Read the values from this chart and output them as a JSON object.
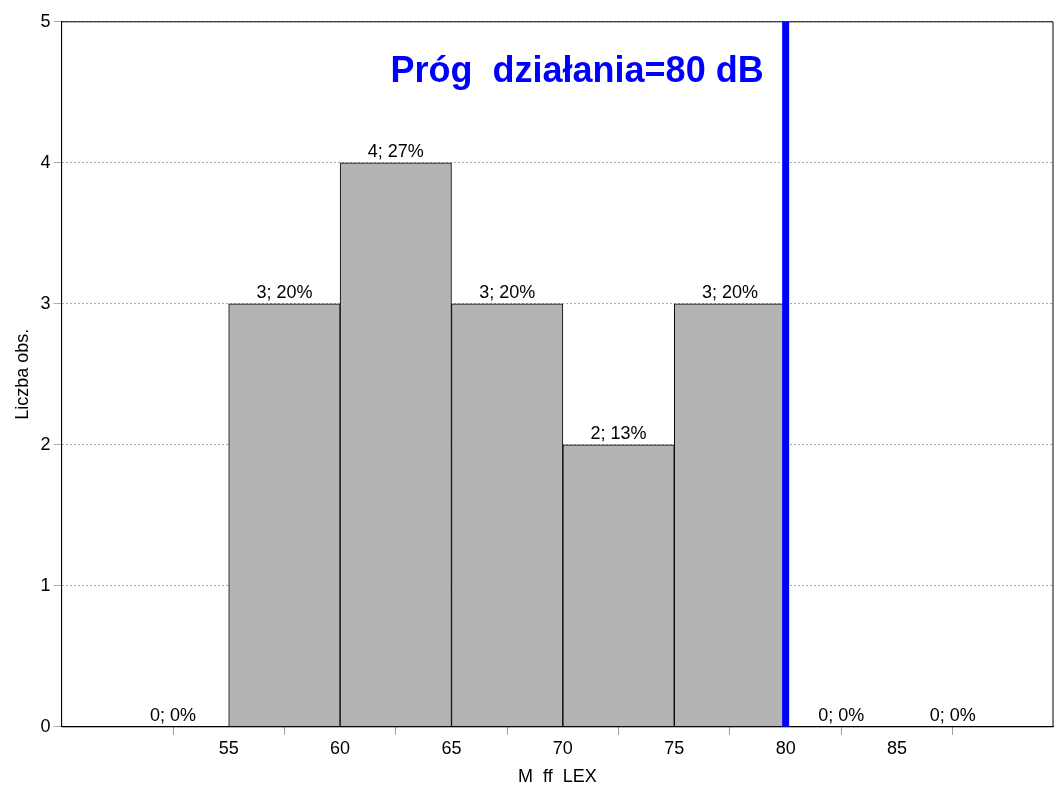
{
  "chart_data": {
    "type": "histogram",
    "xlabel": "M  ff  LEX",
    "ylabel": "Liczba obs.",
    "bins": [
      50,
      55,
      60,
      65,
      70,
      75,
      80,
      85,
      90
    ],
    "values": [
      0,
      3,
      4,
      3,
      2,
      3,
      0,
      0
    ],
    "value_labels": [
      "0; 0%",
      "3; 20%",
      "4; 27%",
      "3; 20%",
      "2; 13%",
      "3; 20%",
      "0; 0%",
      "0; 0%"
    ],
    "color": "#b4b4b4",
    "xlim": [
      47.5,
      92
    ],
    "xticks": [
      55,
      60,
      65,
      70,
      75,
      80,
      85
    ],
    "ylim": [
      0,
      5
    ],
    "yticks": [
      0,
      1,
      2,
      3,
      4,
      5
    ],
    "grid": "y",
    "legend": false,
    "ref_lines": [
      {
        "axis": "x",
        "value": 80,
        "label": "Próg  działania=80 dB",
        "color": "#0000ff"
      }
    ]
  }
}
